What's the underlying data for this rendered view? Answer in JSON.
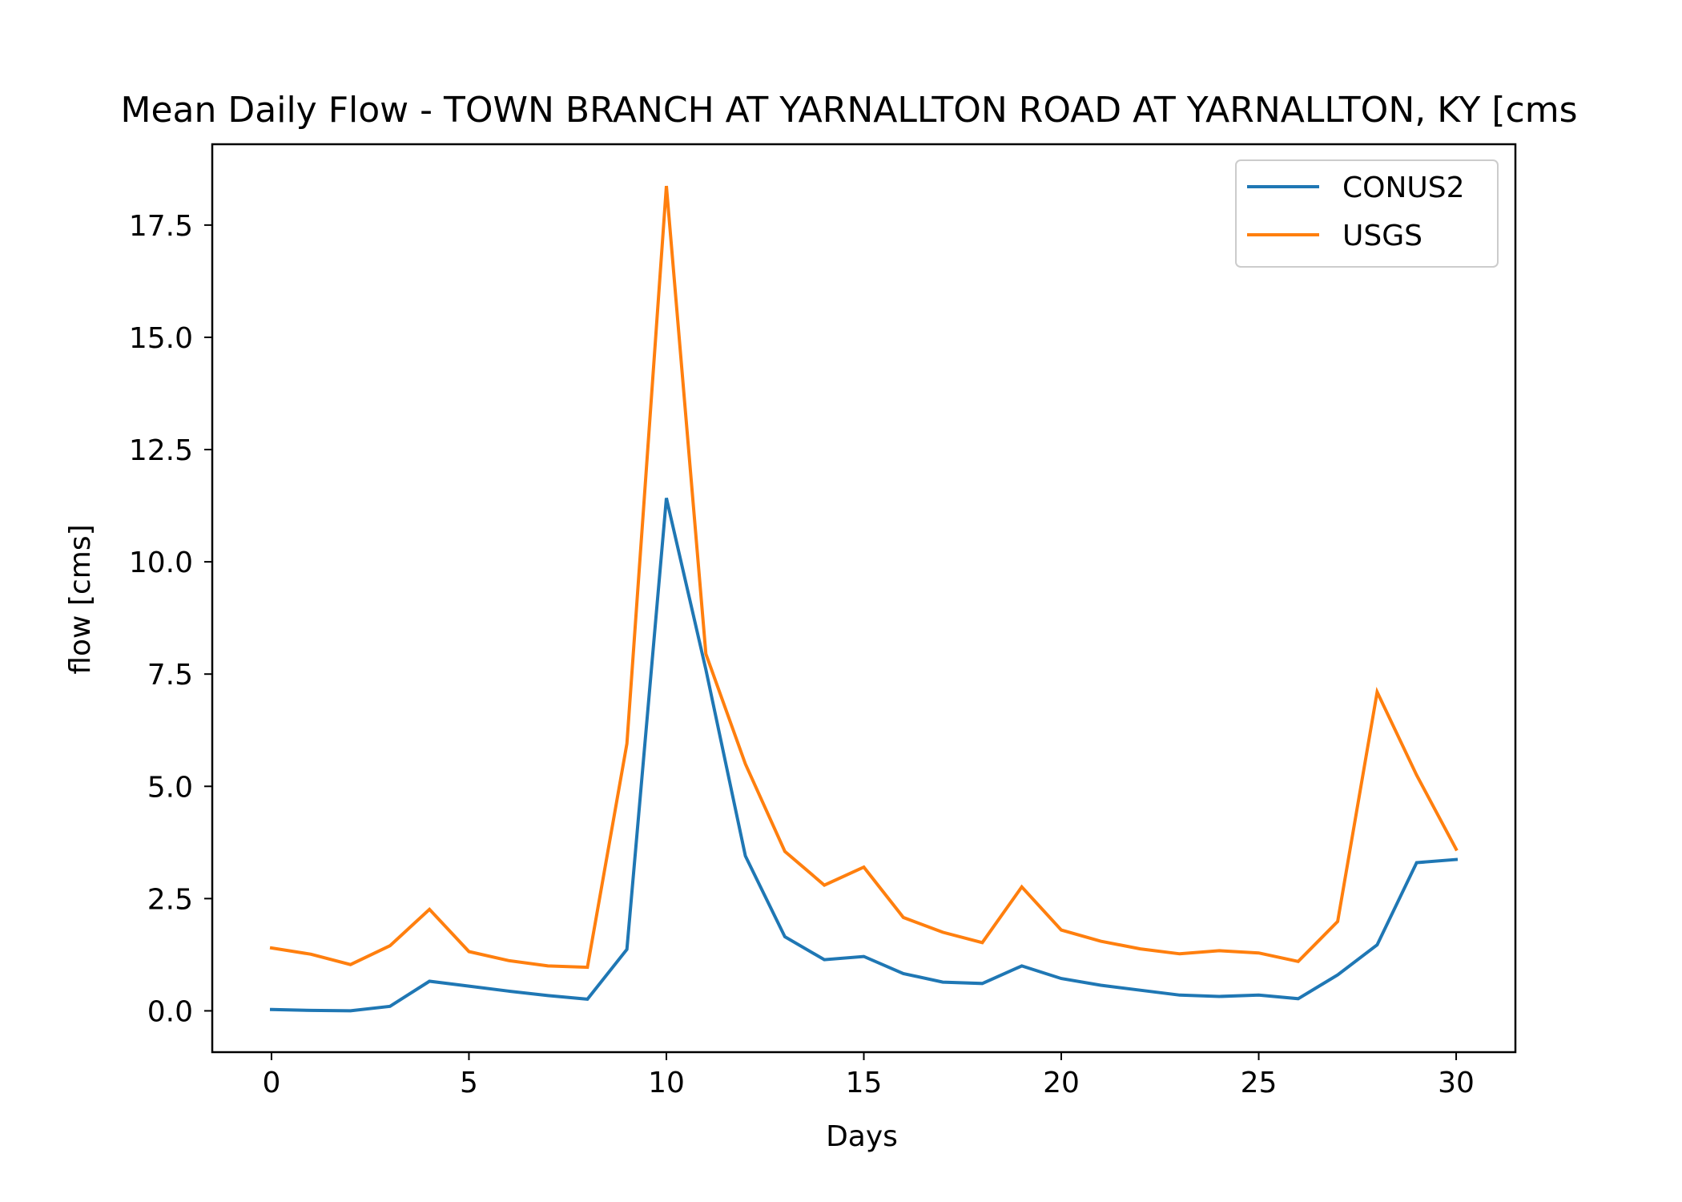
{
  "chart_data": {
    "type": "line",
    "title": "Mean Daily Flow - TOWN BRANCH AT YARNALLTON ROAD AT YARNALLTON, KY [cms",
    "xlabel": "Days",
    "ylabel": "flow [cms]",
    "xlim": [
      -1.5,
      31.5
    ],
    "ylim": [
      -0.92,
      19.3
    ],
    "xticks": [
      0,
      5,
      10,
      15,
      20,
      25,
      30
    ],
    "yticks": [
      0.0,
      2.5,
      5.0,
      7.5,
      10.0,
      12.5,
      15.0,
      17.5
    ],
    "ytick_labels": [
      "0.0",
      "2.5",
      "5.0",
      "7.5",
      "10.0",
      "12.5",
      "15.0",
      "17.5"
    ],
    "grid": false,
    "legend_position": "top-right",
    "x": [
      0,
      1,
      2,
      3,
      4,
      5,
      6,
      7,
      8,
      9,
      10,
      11,
      12,
      13,
      14,
      15,
      16,
      17,
      18,
      19,
      20,
      21,
      22,
      23,
      24,
      25,
      26,
      27,
      28,
      29,
      30
    ],
    "series": [
      {
        "name": "CONUS2",
        "color": "#1f77b4",
        "values": [
          0.03,
          0.01,
          0.0,
          0.1,
          0.66,
          0.55,
          0.44,
          0.34,
          0.26,
          1.37,
          11.42,
          7.6,
          3.45,
          1.65,
          1.14,
          1.21,
          0.83,
          0.64,
          0.61,
          1.0,
          0.72,
          0.57,
          0.46,
          0.35,
          0.32,
          0.35,
          0.27,
          0.8,
          1.47,
          3.3,
          3.37
        ]
      },
      {
        "name": "USGS",
        "color": "#ff7f0e",
        "values": [
          1.4,
          1.26,
          1.03,
          1.45,
          2.26,
          1.32,
          1.12,
          1.0,
          0.97,
          5.95,
          18.37,
          7.95,
          5.5,
          3.55,
          2.8,
          3.2,
          2.08,
          1.75,
          1.52,
          2.76,
          1.8,
          1.55,
          1.38,
          1.27,
          1.34,
          1.29,
          1.1,
          1.99,
          7.1,
          5.25,
          3.6
        ]
      }
    ]
  }
}
